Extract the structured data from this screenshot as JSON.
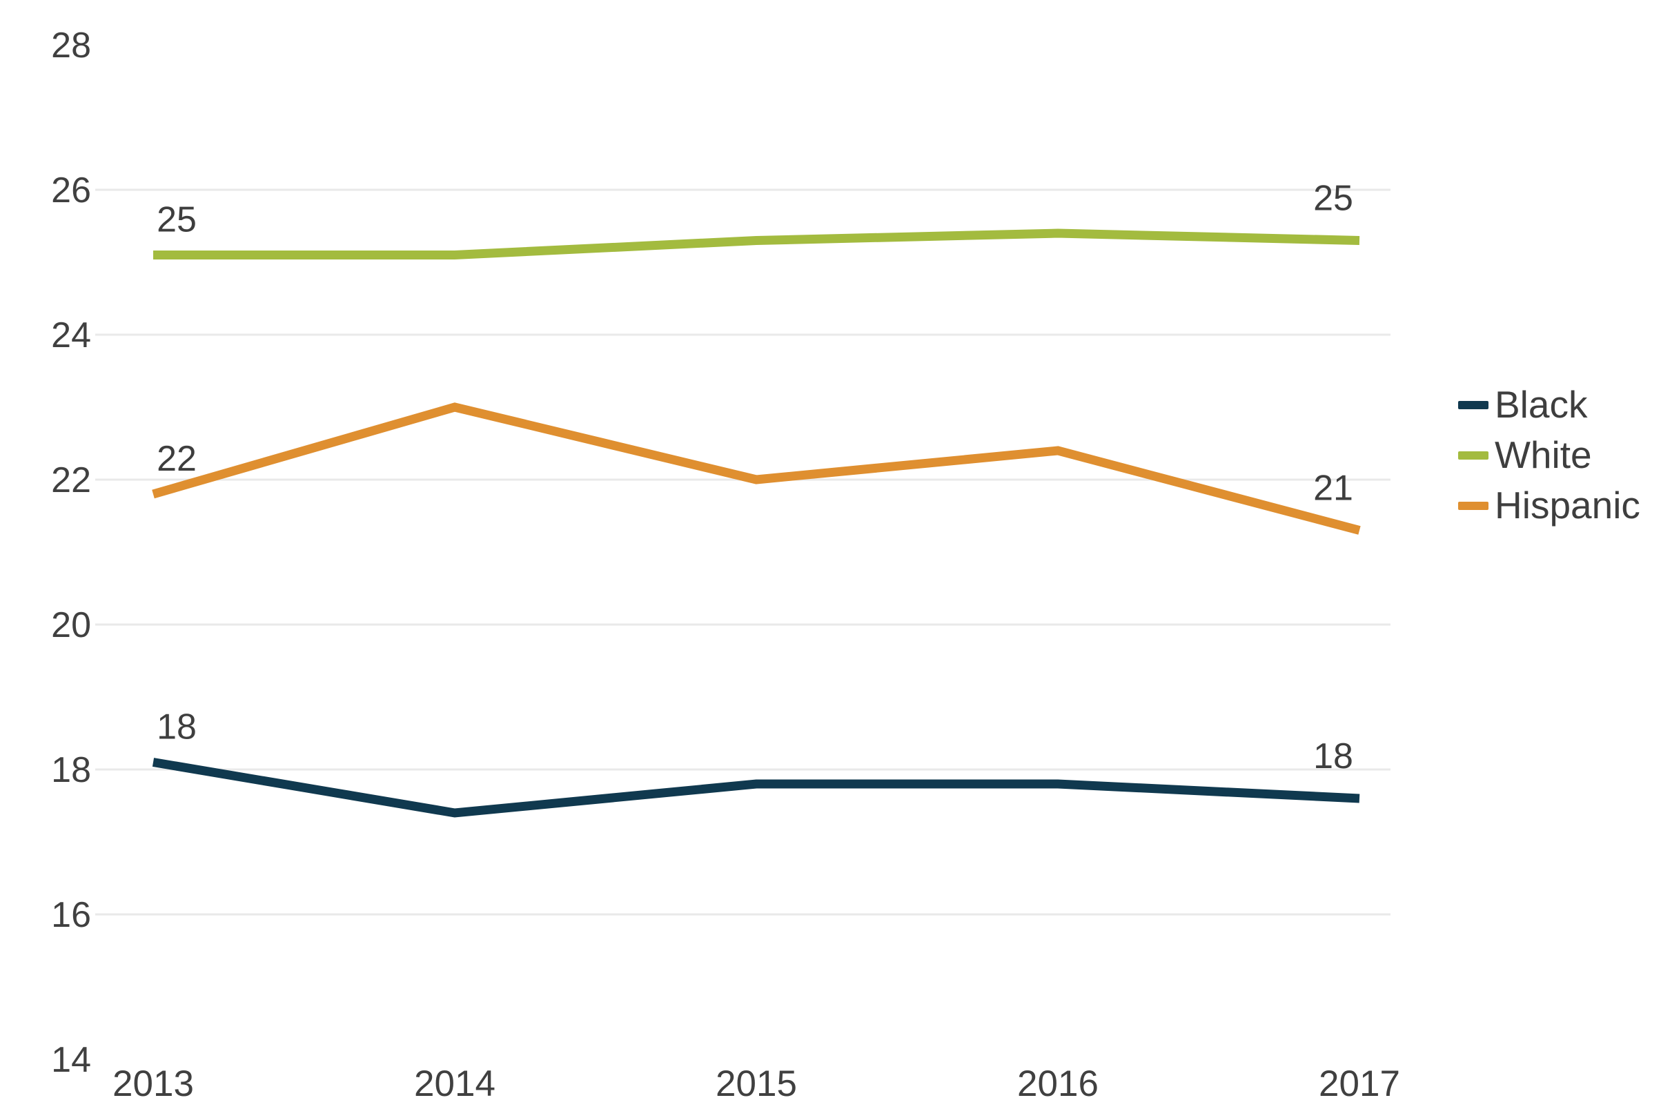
{
  "chart_data": {
    "type": "line",
    "x": [
      "2013",
      "2014",
      "2015",
      "2016",
      "2017"
    ],
    "series": [
      {
        "name": "Black",
        "color": "#10394F",
        "values": [
          18.1,
          17.4,
          17.8,
          17.8,
          17.6
        ],
        "first_point_label": "18",
        "last_point_label": "18"
      },
      {
        "name": "White",
        "color": "#A3BB3F",
        "values": [
          25.1,
          25.1,
          25.3,
          25.4,
          25.3
        ],
        "first_point_label": "25",
        "last_point_label": "25"
      },
      {
        "name": "Hispanic",
        "color": "#DF8F30",
        "values": [
          21.8,
          23.0,
          22.0,
          22.4,
          21.3
        ],
        "first_point_label": "22",
        "last_point_label": "21"
      }
    ],
    "title": "",
    "xlabel": "",
    "ylabel": "",
    "ylim": [
      14,
      28
    ],
    "y_ticks": [
      28,
      26,
      24,
      22,
      20,
      18,
      16,
      14
    ],
    "gridline_ticks": [
      26,
      24,
      22,
      20,
      18,
      16
    ],
    "grid": true,
    "legend_position": "right",
    "colors": {
      "axis_text": "#404040",
      "data_label_text": "#3E3E3E",
      "gridline": "#E9E9E9",
      "background": "#FFFFFF"
    }
  }
}
